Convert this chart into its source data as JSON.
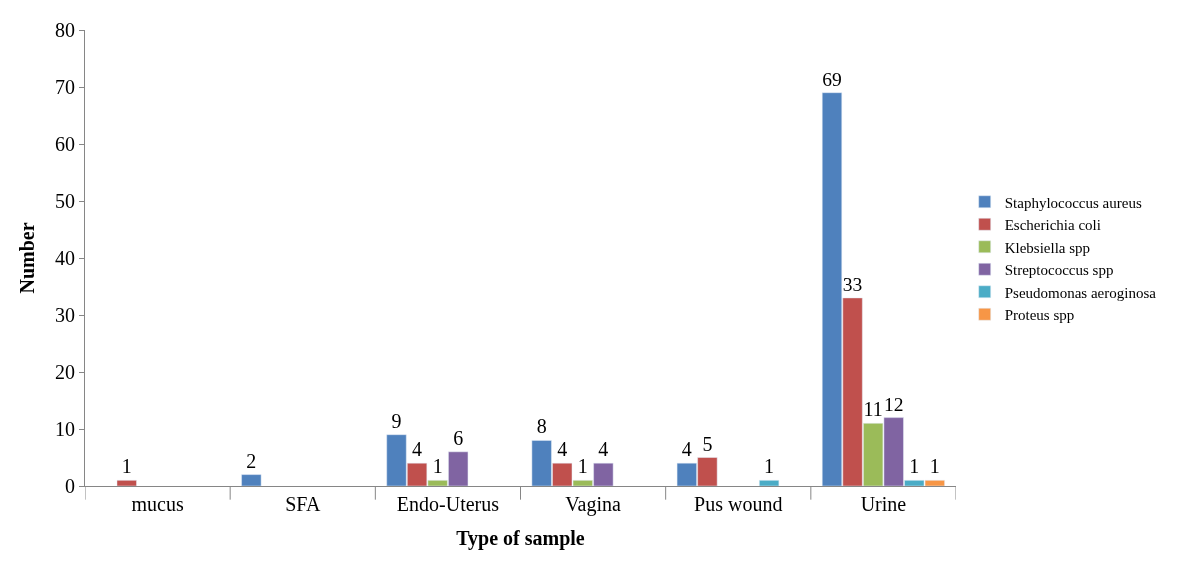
{
  "chart_data": {
    "type": "bar",
    "xlabel": "Type of sample",
    "ylabel": "Number",
    "categories": [
      "mucus",
      "SFA",
      "Endo-Uterus",
      "Vagina",
      "Pus wound",
      "Urine"
    ],
    "series": [
      {
        "name": "Staphylococcus aureus",
        "color": "#4f81bd",
        "values": [
          null,
          2,
          9,
          8,
          4,
          69
        ],
        "value_labels": [
          null,
          "2",
          "9",
          "8",
          "4",
          "69"
        ]
      },
      {
        "name": "Escherichia coli",
        "color": "#c0504d",
        "values": [
          1,
          null,
          4,
          4,
          5,
          33
        ],
        "value_labels": [
          "1",
          null,
          "4",
          "4",
          "5",
          "33"
        ]
      },
      {
        "name": "Klebsiella spp",
        "color": "#9bbb59",
        "values": [
          null,
          null,
          1,
          1,
          null,
          11
        ],
        "value_labels": [
          null,
          null,
          "1",
          "1",
          null,
          "11"
        ]
      },
      {
        "name": "Streptococcus spp",
        "color": "#8064a2",
        "values": [
          null,
          null,
          6,
          4,
          null,
          12
        ],
        "value_labels": [
          null,
          null,
          "6",
          "4",
          null,
          "12"
        ]
      },
      {
        "name": "Pseudomonas aeroginosa",
        "color": "#4bacc6",
        "values": [
          null,
          null,
          null,
          null,
          1,
          1
        ],
        "value_labels": [
          null,
          null,
          null,
          null,
          "1",
          "1"
        ]
      },
      {
        "name": "Proteus spp",
        "color": "#f79646",
        "values": [
          null,
          null,
          null,
          null,
          null,
          1
        ],
        "value_labels": [
          null,
          null,
          null,
          null,
          null,
          "1"
        ]
      }
    ],
    "ylim": [
      0,
      80
    ],
    "yticks": [
      0,
      10,
      20,
      30,
      40,
      50,
      60,
      70,
      80
    ],
    "legend": "right"
  }
}
